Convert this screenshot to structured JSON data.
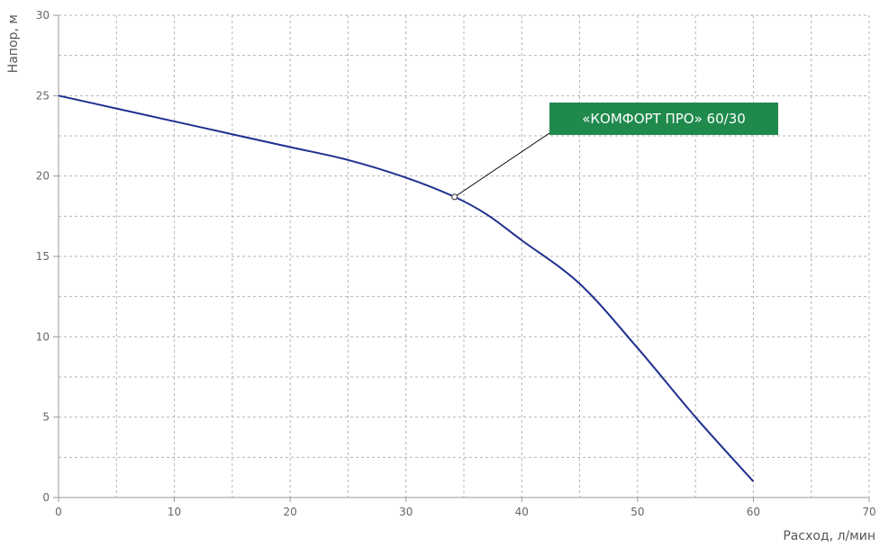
{
  "chart_data": {
    "type": "line",
    "title": "",
    "xlabel": "Расход, л/мин",
    "ylabel": "Напор, м",
    "xlim": [
      0,
      70
    ],
    "ylim": [
      0,
      30
    ],
    "x_ticks": [
      0,
      10,
      20,
      30,
      40,
      50,
      60,
      70
    ],
    "y_ticks": [
      0,
      5,
      10,
      15,
      20,
      25,
      30
    ],
    "grid": true,
    "series": [
      {
        "name": "«КОМФОРТ ПРО» 60/30",
        "x": [
          0,
          5,
          10,
          15,
          20,
          25,
          30,
          34.2,
          37,
          40,
          45,
          50,
          55,
          60
        ],
        "y": [
          25,
          24.2,
          23.4,
          22.6,
          21.8,
          21.0,
          19.9,
          18.7,
          17.6,
          16.0,
          13.3,
          9.3,
          5.0,
          1.0
        ]
      }
    ],
    "annotation": {
      "text": "«КОМФОРТ ПРО» 60/30",
      "x": 34.2,
      "y": 18.7
    },
    "colors": {
      "line": "#1f2f8f",
      "callout_bg": "#1f8a4c",
      "callout_text": "#ffffff",
      "grid": "#b5b5b5"
    }
  }
}
